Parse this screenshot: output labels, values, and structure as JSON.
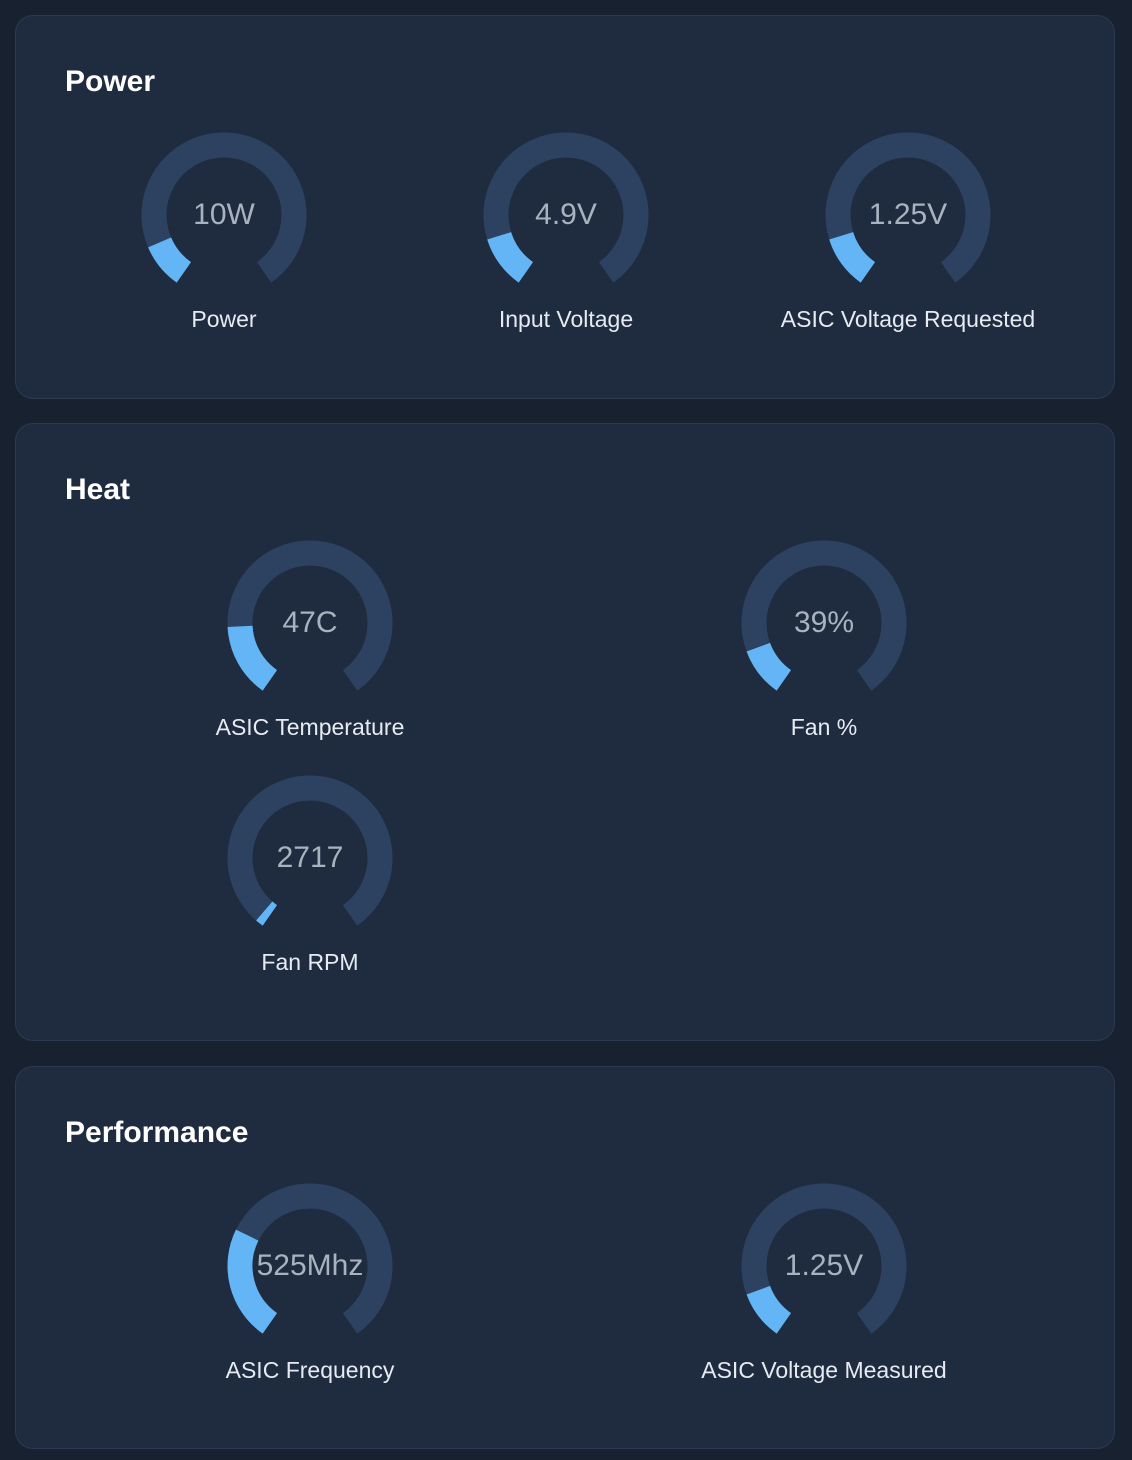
{
  "colors": {
    "background": "#172130",
    "card": "#1f2c40",
    "track": "#2d4261",
    "fill": "#64b5f6",
    "value_text": "#a9b3bf",
    "label_text": "#e6ebf1"
  },
  "sections": [
    {
      "title": "Power",
      "gauges": [
        {
          "value": "10W",
          "label": "Power",
          "fraction": 0.11
        },
        {
          "value": "4.9V",
          "label": "Input Voltage",
          "fraction": 0.13
        },
        {
          "value": "1.25V",
          "label": "ASIC Voltage Requested",
          "fraction": 0.13
        }
      ]
    },
    {
      "title": "Heat",
      "gauges": [
        {
          "value": "47C",
          "label": "ASIC Temperature",
          "fraction": 0.18
        },
        {
          "value": "39%",
          "label": "Fan %",
          "fraction": 0.12
        },
        {
          "value": "2717",
          "label": "Fan RPM",
          "fraction": 0.02
        }
      ]
    },
    {
      "title": "Performance",
      "gauges": [
        {
          "value": "525Mhz",
          "label": "ASIC Frequency",
          "fraction": 0.28
        },
        {
          "value": "1.25V",
          "label": "ASIC Voltage Measured",
          "fraction": 0.12
        }
      ]
    }
  ]
}
